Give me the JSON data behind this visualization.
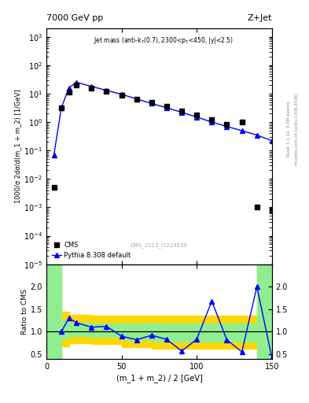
{
  "title_left": "7000 GeV pp",
  "title_right": "Z+Jet",
  "annotation": "Jet mass (anti-k_{T}(0.7), 2300<p_{T}<450, |y|<2.5)",
  "watermark": "CMS_2013_I1224539",
  "ylabel_main": "1000/σ 2dσ/d(m_1 + m_2) [1/GeV]",
  "ylabel_ratio": "Ratio to CMS",
  "xlabel": "(m_1 + m_2) / 2 [GeV]",
  "rivet_label": "Rivet 3.1.10, 3.3M events",
  "arxiv_label": "mcplots.cern.ch [arXiv:1306.3436]",
  "cms_x": [
    5,
    10,
    15,
    20,
    30,
    40,
    50,
    60,
    70,
    80,
    90,
    100,
    110,
    120,
    130,
    140,
    150
  ],
  "cms_y": [
    0.005,
    3.2,
    11.0,
    20.0,
    16.0,
    12.0,
    9.0,
    6.5,
    5.0,
    3.5,
    2.5,
    1.8,
    1.2,
    0.85,
    1.0,
    0.001,
    0.0008
  ],
  "pythia_x": [
    5,
    10,
    15,
    20,
    30,
    40,
    50,
    60,
    70,
    80,
    90,
    100,
    110,
    120,
    130,
    140,
    150
  ],
  "pythia_y": [
    0.07,
    3.2,
    16.0,
    25.0,
    18.0,
    13.0,
    9.5,
    6.5,
    4.5,
    3.2,
    2.2,
    1.5,
    1.0,
    0.7,
    0.5,
    0.35,
    0.22
  ],
  "ratio_x": [
    10,
    15,
    20,
    30,
    40,
    50,
    60,
    70,
    80,
    90,
    100,
    110,
    120,
    130,
    140,
    150
  ],
  "ratio_y": [
    1.0,
    1.3,
    1.2,
    1.1,
    1.12,
    0.9,
    0.82,
    0.92,
    0.83,
    0.57,
    0.83,
    1.68,
    0.82,
    0.55,
    2.0,
    0.42
  ],
  "green_bins": [
    [
      0,
      5
    ],
    [
      5,
      10
    ],
    [
      10,
      15
    ],
    [
      15,
      20
    ],
    [
      20,
      30
    ],
    [
      30,
      40
    ],
    [
      40,
      50
    ],
    [
      50,
      60
    ],
    [
      60,
      70
    ],
    [
      70,
      80
    ],
    [
      80,
      90
    ],
    [
      90,
      100
    ],
    [
      100,
      110
    ],
    [
      110,
      120
    ],
    [
      120,
      130
    ],
    [
      130,
      140
    ],
    [
      140,
      150
    ]
  ],
  "green_lo": [
    0.4,
    0.4,
    0.85,
    0.9,
    0.9,
    0.88,
    0.88,
    0.82,
    0.82,
    0.78,
    0.78,
    0.78,
    0.78,
    0.78,
    0.78,
    0.78,
    0.4
  ],
  "green_hi": [
    2.6,
    2.6,
    1.25,
    1.2,
    1.2,
    1.18,
    1.18,
    1.18,
    1.18,
    1.18,
    1.18,
    1.18,
    1.18,
    1.18,
    1.18,
    1.18,
    2.6
  ],
  "yellow_lo": [
    0.4,
    0.4,
    0.68,
    0.75,
    0.75,
    0.72,
    0.72,
    0.65,
    0.65,
    0.62,
    0.62,
    0.62,
    0.62,
    0.62,
    0.62,
    0.62,
    0.4
  ],
  "yellow_hi": [
    2.6,
    2.6,
    1.45,
    1.38,
    1.38,
    1.35,
    1.35,
    1.35,
    1.35,
    1.35,
    1.35,
    1.35,
    1.35,
    1.35,
    1.35,
    1.35,
    2.6
  ],
  "main_color": "blue",
  "cms_color": "black",
  "cms_marker": "s",
  "pythia_marker": "^",
  "xlim": [
    0,
    150
  ],
  "ylim_main": [
    1e-05,
    2000.0
  ],
  "ylim_ratio": [
    0.4,
    2.5
  ],
  "ratio_yticks": [
    0.5,
    1.0,
    1.5,
    2.0
  ]
}
